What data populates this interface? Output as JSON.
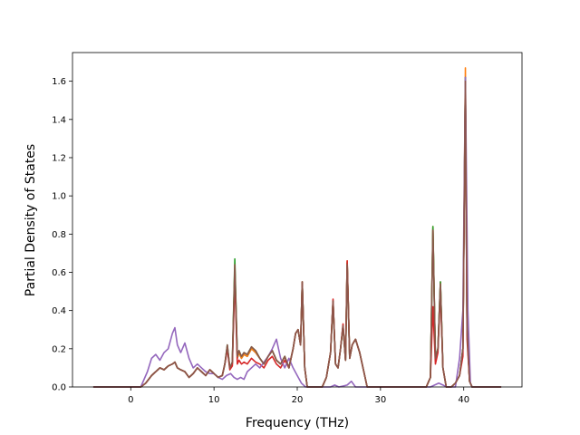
{
  "chart_data": {
    "type": "line",
    "title": "",
    "xlabel": "Frequency (THz)",
    "ylabel": "Partial Density of States",
    "xlim": [
      -7.0,
      47.0
    ],
    "ylim": [
      0.0,
      1.75
    ],
    "xticks": [
      0,
      10,
      20,
      30,
      40
    ],
    "yticks": [
      0.0,
      0.2,
      0.4,
      0.6,
      0.8,
      1.0,
      1.2,
      1.4,
      1.6
    ],
    "grid": false,
    "legend": "none",
    "series": [
      {
        "color": "#1f77b4",
        "x": [
          -4.5,
          1.2,
          1.8,
          2.5,
          3.0,
          3.5,
          4.0,
          4.5,
          5.0,
          5.3,
          5.6,
          6.0,
          6.5,
          7.0,
          7.5,
          8.0,
          8.5,
          9.0,
          9.5,
          10.0,
          10.5,
          11.0,
          11.3,
          11.6,
          11.9,
          12.2,
          12.5,
          12.8,
          13.0,
          13.3,
          13.6,
          14.0,
          14.5,
          15.0,
          15.5,
          16.0,
          16.5,
          17.0,
          17.5,
          18.0,
          18.5,
          19.0,
          19.5,
          19.8,
          20.1,
          20.4,
          20.6,
          20.9,
          21.2,
          23.0,
          23.5,
          24.0,
          24.3,
          24.6,
          24.9,
          25.2,
          25.5,
          25.8,
          26.0,
          26.3,
          26.6,
          27.0,
          27.5,
          28.0,
          28.4,
          35.5,
          36.0,
          36.3,
          36.6,
          36.9,
          37.2,
          37.5,
          37.7,
          37.9,
          38.2,
          38.5,
          39.0,
          39.5,
          39.9,
          40.2,
          40.4,
          40.7,
          41.0,
          44.5
        ],
        "y": [
          0.0,
          0.0,
          0.02,
          0.06,
          0.08,
          0.1,
          0.09,
          0.11,
          0.12,
          0.13,
          0.1,
          0.09,
          0.08,
          0.05,
          0.07,
          0.1,
          0.08,
          0.06,
          0.09,
          0.07,
          0.05,
          0.06,
          0.12,
          0.2,
          0.1,
          0.12,
          0.6,
          0.15,
          0.18,
          0.15,
          0.17,
          0.16,
          0.2,
          0.18,
          0.15,
          0.12,
          0.16,
          0.19,
          0.14,
          0.12,
          0.16,
          0.1,
          0.2,
          0.28,
          0.3,
          0.22,
          0.55,
          0.1,
          0.0,
          0.0,
          0.05,
          0.18,
          0.45,
          0.12,
          0.1,
          0.2,
          0.32,
          0.14,
          0.65,
          0.15,
          0.22,
          0.25,
          0.18,
          0.08,
          0.0,
          0.0,
          0.05,
          0.83,
          0.15,
          0.2,
          0.55,
          0.1,
          0.05,
          0.0,
          0.0,
          0.0,
          0.02,
          0.06,
          0.2,
          1.6,
          0.3,
          0.03,
          0.0,
          0.0
        ]
      },
      {
        "color": "#ff7f0e",
        "x": [
          -4.5,
          1.2,
          1.8,
          2.5,
          3.0,
          3.5,
          4.0,
          4.5,
          5.0,
          5.3,
          5.6,
          6.0,
          6.5,
          7.0,
          7.5,
          8.0,
          8.5,
          9.0,
          9.5,
          10.0,
          10.5,
          11.0,
          11.3,
          11.6,
          11.9,
          12.2,
          12.5,
          12.8,
          13.0,
          13.3,
          13.6,
          14.0,
          14.5,
          15.0,
          15.5,
          16.0,
          16.5,
          17.0,
          17.5,
          18.0,
          18.5,
          19.0,
          19.5,
          19.8,
          20.1,
          20.4,
          20.6,
          20.9,
          21.2,
          23.0,
          23.5,
          24.0,
          24.3,
          24.6,
          24.9,
          25.2,
          25.5,
          25.8,
          26.0,
          26.3,
          26.6,
          27.0,
          27.5,
          28.0,
          28.4,
          35.5,
          36.0,
          36.3,
          36.6,
          36.9,
          37.2,
          37.5,
          37.7,
          37.9,
          38.2,
          38.5,
          39.0,
          39.5,
          39.9,
          40.2,
          40.4,
          40.7,
          41.0,
          44.5
        ],
        "y": [
          0.0,
          0.0,
          0.02,
          0.06,
          0.08,
          0.1,
          0.09,
          0.11,
          0.12,
          0.13,
          0.1,
          0.09,
          0.08,
          0.05,
          0.07,
          0.1,
          0.08,
          0.06,
          0.09,
          0.07,
          0.05,
          0.06,
          0.12,
          0.21,
          0.1,
          0.12,
          0.62,
          0.15,
          0.18,
          0.15,
          0.17,
          0.16,
          0.2,
          0.18,
          0.15,
          0.12,
          0.16,
          0.19,
          0.14,
          0.12,
          0.16,
          0.1,
          0.2,
          0.28,
          0.3,
          0.22,
          0.55,
          0.1,
          0.0,
          0.0,
          0.05,
          0.18,
          0.45,
          0.12,
          0.1,
          0.2,
          0.32,
          0.14,
          0.66,
          0.15,
          0.22,
          0.25,
          0.18,
          0.08,
          0.0,
          0.0,
          0.05,
          0.84,
          0.15,
          0.2,
          0.55,
          0.1,
          0.05,
          0.0,
          0.0,
          0.0,
          0.02,
          0.06,
          0.2,
          1.67,
          0.3,
          0.03,
          0.0,
          0.0
        ]
      },
      {
        "color": "#2ca02c",
        "x": [
          -4.5,
          1.2,
          1.8,
          2.5,
          3.0,
          3.5,
          4.0,
          4.5,
          5.0,
          5.3,
          5.6,
          6.0,
          6.5,
          7.0,
          7.5,
          8.0,
          8.5,
          9.0,
          9.5,
          10.0,
          10.5,
          11.0,
          11.3,
          11.6,
          11.9,
          12.2,
          12.5,
          12.8,
          13.0,
          13.3,
          13.6,
          14.0,
          14.5,
          15.0,
          15.5,
          16.0,
          16.5,
          17.0,
          17.5,
          18.0,
          18.5,
          19.0,
          19.5,
          19.8,
          20.1,
          20.4,
          20.6,
          20.9,
          21.2,
          23.0,
          23.5,
          24.0,
          24.3,
          24.6,
          24.9,
          25.2,
          25.5,
          25.8,
          26.0,
          26.3,
          26.6,
          27.0,
          27.5,
          28.0,
          28.4,
          35.5,
          36.0,
          36.3,
          36.6,
          36.9,
          37.2,
          37.5,
          37.7,
          37.9,
          38.2,
          38.5,
          39.0,
          39.5,
          39.9,
          40.2,
          40.4,
          40.7,
          41.0,
          44.5
        ],
        "y": [
          0.0,
          0.0,
          0.02,
          0.06,
          0.08,
          0.1,
          0.09,
          0.11,
          0.12,
          0.13,
          0.1,
          0.09,
          0.08,
          0.05,
          0.07,
          0.1,
          0.08,
          0.06,
          0.09,
          0.07,
          0.05,
          0.06,
          0.12,
          0.22,
          0.1,
          0.13,
          0.67,
          0.16,
          0.19,
          0.16,
          0.18,
          0.17,
          0.21,
          0.19,
          0.15,
          0.12,
          0.16,
          0.19,
          0.14,
          0.12,
          0.16,
          0.1,
          0.2,
          0.28,
          0.3,
          0.22,
          0.55,
          0.1,
          0.0,
          0.0,
          0.05,
          0.18,
          0.45,
          0.12,
          0.1,
          0.2,
          0.32,
          0.14,
          0.65,
          0.15,
          0.22,
          0.25,
          0.18,
          0.08,
          0.0,
          0.0,
          0.05,
          0.84,
          0.15,
          0.2,
          0.55,
          0.1,
          0.05,
          0.0,
          0.0,
          0.0,
          0.02,
          0.06,
          0.2,
          1.62,
          0.3,
          0.03,
          0.0,
          0.0
        ]
      },
      {
        "color": "#d62728",
        "x": [
          -4.5,
          1.2,
          1.8,
          2.5,
          3.0,
          3.5,
          4.0,
          4.5,
          5.0,
          5.3,
          5.6,
          6.0,
          6.5,
          7.0,
          7.5,
          8.0,
          8.5,
          9.0,
          9.5,
          10.0,
          10.5,
          11.0,
          11.3,
          11.6,
          11.9,
          12.2,
          12.5,
          12.8,
          13.0,
          13.3,
          13.6,
          14.0,
          14.5,
          15.0,
          15.5,
          16.0,
          16.5,
          17.0,
          17.5,
          18.0,
          18.5,
          19.0,
          19.5,
          19.8,
          20.1,
          20.4,
          20.6,
          20.9,
          21.2,
          23.0,
          23.5,
          24.0,
          24.3,
          24.6,
          24.9,
          25.2,
          25.5,
          25.8,
          26.0,
          26.3,
          26.6,
          27.0,
          27.5,
          28.0,
          28.4,
          35.5,
          36.0,
          36.3,
          36.6,
          36.9,
          37.2,
          37.5,
          37.7,
          37.9,
          38.2,
          38.5,
          39.0,
          39.5,
          39.9,
          40.2,
          40.4,
          40.7,
          41.0,
          44.5
        ],
        "y": [
          0.0,
          0.0,
          0.02,
          0.06,
          0.08,
          0.1,
          0.09,
          0.11,
          0.12,
          0.13,
          0.1,
          0.09,
          0.08,
          0.05,
          0.07,
          0.1,
          0.08,
          0.06,
          0.09,
          0.07,
          0.05,
          0.06,
          0.12,
          0.2,
          0.09,
          0.11,
          0.58,
          0.12,
          0.14,
          0.12,
          0.13,
          0.12,
          0.15,
          0.13,
          0.12,
          0.1,
          0.14,
          0.16,
          0.12,
          0.1,
          0.14,
          0.1,
          0.2,
          0.28,
          0.3,
          0.22,
          0.55,
          0.1,
          0.0,
          0.0,
          0.05,
          0.18,
          0.46,
          0.12,
          0.1,
          0.2,
          0.33,
          0.14,
          0.66,
          0.15,
          0.22,
          0.25,
          0.18,
          0.08,
          0.0,
          0.0,
          0.05,
          0.42,
          0.12,
          0.18,
          0.5,
          0.1,
          0.05,
          0.0,
          0.0,
          0.0,
          0.02,
          0.06,
          0.16,
          1.6,
          0.25,
          0.03,
          0.0,
          0.0
        ]
      },
      {
        "color": "#9467bd",
        "x": [
          -4.5,
          1.2,
          2.0,
          2.5,
          3.0,
          3.5,
          4.0,
          4.5,
          5.0,
          5.3,
          5.6,
          6.0,
          6.5,
          7.0,
          7.5,
          8.0,
          8.5,
          9.0,
          9.5,
          10.0,
          10.5,
          11.0,
          11.5,
          12.0,
          12.4,
          12.8,
          13.2,
          13.6,
          14.0,
          14.5,
          15.0,
          15.5,
          16.0,
          16.5,
          17.0,
          17.5,
          18.0,
          18.5,
          19.0,
          19.5,
          20.0,
          20.5,
          21.0,
          24.0,
          24.5,
          25.0,
          26.0,
          26.5,
          27.0,
          36.0,
          36.5,
          37.0,
          37.5,
          38.0,
          39.0,
          39.5,
          39.9,
          40.2,
          40.5,
          40.8,
          41.0,
          44.5
        ],
        "y": [
          0.0,
          0.0,
          0.08,
          0.15,
          0.17,
          0.14,
          0.18,
          0.2,
          0.28,
          0.31,
          0.22,
          0.18,
          0.23,
          0.15,
          0.1,
          0.12,
          0.1,
          0.08,
          0.07,
          0.07,
          0.05,
          0.04,
          0.06,
          0.07,
          0.05,
          0.04,
          0.05,
          0.04,
          0.08,
          0.1,
          0.12,
          0.1,
          0.13,
          0.16,
          0.2,
          0.25,
          0.15,
          0.1,
          0.15,
          0.1,
          0.06,
          0.02,
          0.0,
          0.0,
          0.01,
          0.0,
          0.01,
          0.03,
          0.0,
          0.0,
          0.01,
          0.02,
          0.01,
          0.0,
          0.0,
          0.15,
          0.4,
          1.62,
          0.4,
          0.02,
          0.0,
          0.0
        ]
      },
      {
        "color": "#8c564b",
        "x": [
          -4.5,
          1.2,
          1.8,
          2.5,
          3.0,
          3.5,
          4.0,
          4.5,
          5.0,
          5.3,
          5.6,
          6.0,
          6.5,
          7.0,
          7.5,
          8.0,
          8.5,
          9.0,
          9.5,
          10.0,
          10.5,
          11.0,
          11.3,
          11.6,
          11.9,
          12.2,
          12.5,
          12.8,
          13.0,
          13.3,
          13.6,
          14.0,
          14.5,
          15.0,
          15.5,
          16.0,
          16.5,
          17.0,
          17.5,
          18.0,
          18.5,
          19.0,
          19.5,
          19.8,
          20.1,
          20.4,
          20.6,
          20.9,
          21.2,
          23.0,
          23.5,
          24.0,
          24.3,
          24.6,
          24.9,
          25.2,
          25.5,
          25.8,
          26.0,
          26.3,
          26.6,
          27.0,
          27.5,
          28.0,
          28.4,
          35.5,
          36.0,
          36.3,
          36.6,
          36.9,
          37.2,
          37.5,
          37.7,
          37.9,
          38.2,
          38.5,
          39.0,
          39.5,
          39.9,
          40.2,
          40.4,
          40.7,
          41.0,
          44.5
        ],
        "y": [
          0.0,
          0.0,
          0.02,
          0.06,
          0.08,
          0.1,
          0.09,
          0.11,
          0.12,
          0.13,
          0.1,
          0.09,
          0.08,
          0.05,
          0.07,
          0.1,
          0.08,
          0.06,
          0.09,
          0.07,
          0.05,
          0.06,
          0.12,
          0.22,
          0.1,
          0.13,
          0.64,
          0.16,
          0.19,
          0.16,
          0.18,
          0.17,
          0.21,
          0.19,
          0.15,
          0.12,
          0.16,
          0.19,
          0.14,
          0.12,
          0.16,
          0.1,
          0.2,
          0.28,
          0.3,
          0.22,
          0.55,
          0.1,
          0.0,
          0.0,
          0.05,
          0.18,
          0.45,
          0.12,
          0.1,
          0.2,
          0.32,
          0.14,
          0.64,
          0.15,
          0.22,
          0.25,
          0.18,
          0.08,
          0.0,
          0.0,
          0.05,
          0.82,
          0.15,
          0.2,
          0.54,
          0.1,
          0.05,
          0.0,
          0.0,
          0.0,
          0.02,
          0.06,
          0.2,
          1.6,
          0.3,
          0.03,
          0.0,
          0.0
        ]
      }
    ]
  }
}
